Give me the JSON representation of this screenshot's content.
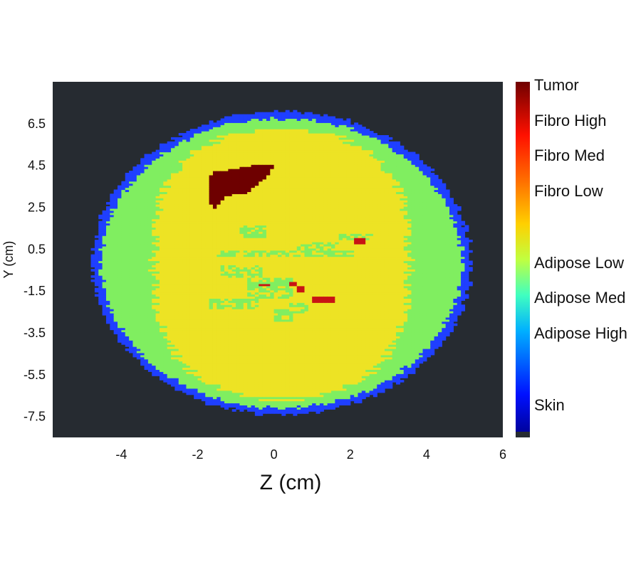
{
  "chart_data": {
    "type": "heatmap",
    "title": "",
    "xlabel": "Z (cm)",
    "ylabel": "Y (cm)",
    "xlim": [
      -5.8,
      6
    ],
    "ylim": [
      -8.5,
      8.5
    ],
    "x_ticks": [
      "-4",
      "-2",
      "0",
      "2",
      "4",
      "6"
    ],
    "y_ticks": [
      "6.5",
      "4.5",
      "2.5",
      "0.5",
      "-1.5",
      "-3.5",
      "-5.5",
      "-7.5"
    ],
    "background_color": "#262b31",
    "colorbar": {
      "colormap": "jet",
      "labels": [
        {
          "text": "Tumor",
          "color": "#7a0000"
        },
        {
          "text": "Fibro High",
          "color": "#c00000"
        },
        {
          "text": "Fibro Med",
          "color": "#ff2000"
        },
        {
          "text": "Fibro Low",
          "color": "#ff7000"
        },
        {
          "text": "Adipose Low",
          "color": "#f0e020"
        },
        {
          "text": "Adipose Med",
          "color": "#80f060"
        },
        {
          "text": "Adipose High",
          "color": "#40b0f0"
        },
        {
          "text": "Skin",
          "color": "#0028ff"
        }
      ]
    },
    "regions": {
      "skin": {
        "label": "Skin",
        "color": "#1f3fff",
        "center": [
          0.15,
          -0.2
        ],
        "radius_z": 4.95,
        "radius_y": 7.25
      },
      "adipose_med_ring": {
        "label": "Adipose Med",
        "color": "#80ee60"
      },
      "adipose_low_core": {
        "label": "Adipose Low",
        "color": "#ede324"
      },
      "tumor": {
        "label": "Tumor",
        "color": "#6e0000",
        "center": [
          -1.0,
          3.6
        ]
      },
      "fibro_spots": {
        "label": "Fibro High",
        "color": "#c81414"
      }
    }
  }
}
